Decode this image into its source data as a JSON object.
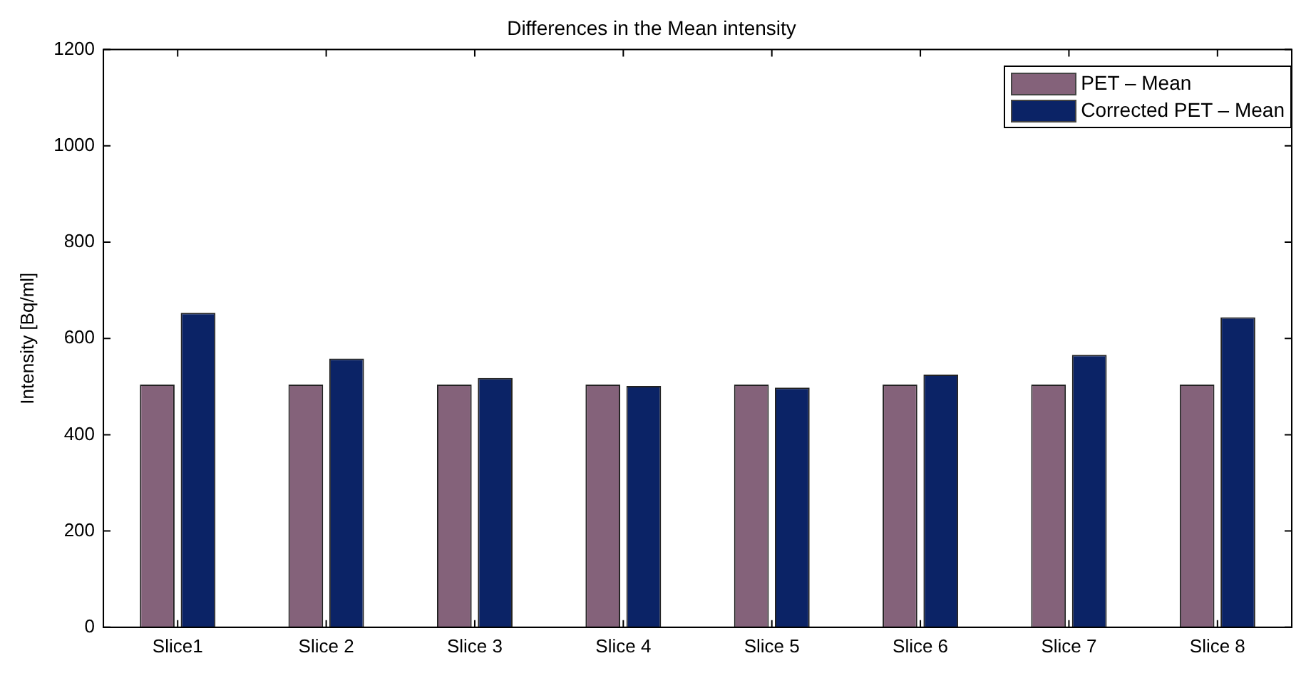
{
  "chart_data": {
    "type": "bar",
    "title": "Differences in the Mean intensity",
    "ylabel": "Intensity [Bq/ml]",
    "categories": [
      "Slice1",
      "Slice 2",
      "Slice 3",
      "Slice 4",
      "Slice 5",
      "Slice 6",
      "Slice 7",
      "Slice 8"
    ],
    "series": [
      {
        "name": "PET – Mean",
        "color": "#84627a",
        "values": [
          504,
          504,
          504,
          504,
          504,
          504,
          504,
          504
        ]
      },
      {
        "name": "Corrected PET – Mean",
        "color": "#0b2366",
        "values": [
          653,
          558,
          518,
          501,
          498,
          525,
          566,
          644
        ]
      }
    ],
    "ylim": [
      0,
      1200
    ],
    "yticks": [
      0,
      200,
      400,
      600,
      800,
      1000,
      1200
    ],
    "grid": false,
    "legend": "top right"
  }
}
